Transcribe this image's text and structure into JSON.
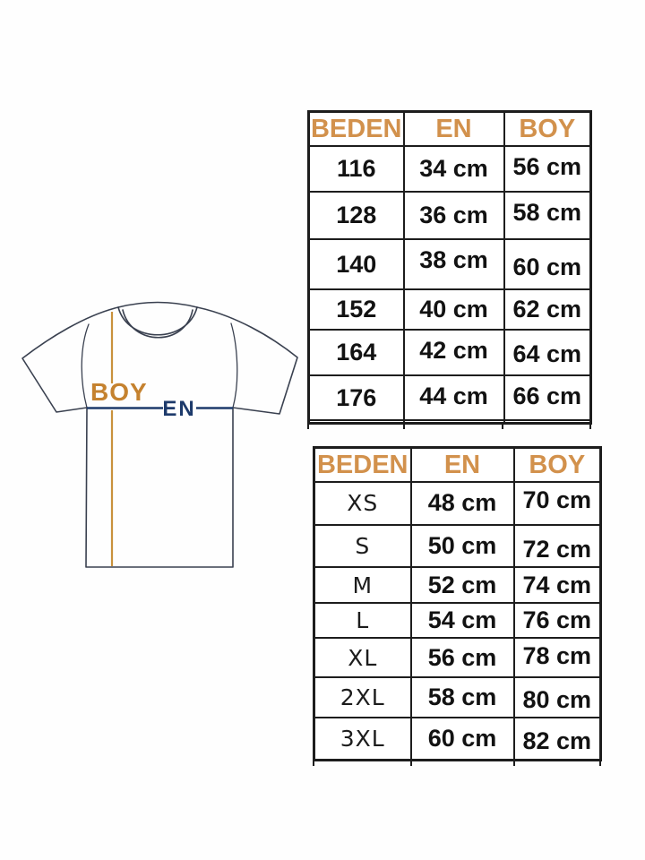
{
  "diagram": {
    "boy_label": "BOY",
    "en_label": "EN"
  },
  "tables": [
    {
      "name": "kids-size-table",
      "headers": [
        "BEDEN",
        "EN",
        "BOY"
      ],
      "rows": [
        [
          "116",
          "34 cm",
          "56 cm"
        ],
        [
          "128",
          "36 cm",
          "58 cm"
        ],
        [
          "140",
          "38 cm",
          "60 cm"
        ],
        [
          "152",
          "40 cm",
          "62 cm"
        ],
        [
          "164",
          "42 cm",
          "64 cm"
        ],
        [
          "176",
          "44 cm",
          "66 cm"
        ],
        [
          "",
          "",
          ""
        ]
      ]
    },
    {
      "name": "adult-size-table",
      "headers": [
        "BEDEN",
        "EN",
        "BOY"
      ],
      "rows": [
        [
          "XS",
          "48 cm",
          "70 cm"
        ],
        [
          "S",
          "50 cm",
          "72 cm"
        ],
        [
          "M",
          "52 cm",
          "74 cm"
        ],
        [
          "L",
          "54 cm",
          "76 cm"
        ],
        [
          "XL",
          "56 cm",
          "78 cm"
        ],
        [
          "2XL",
          "58 cm",
          "80 cm"
        ],
        [
          "3XL",
          "60 cm",
          "82 cm"
        ]
      ]
    }
  ],
  "colors": {
    "header_orange": "#d2914c",
    "boy_orange": "#c5822f",
    "boy_line_orange": "#c9913c",
    "en_navy": "#1d3a6b",
    "table_border": "#1d1d1d",
    "cell_text": "#121212",
    "shirt_outline": "#3a4150",
    "background": "#fefefe"
  }
}
